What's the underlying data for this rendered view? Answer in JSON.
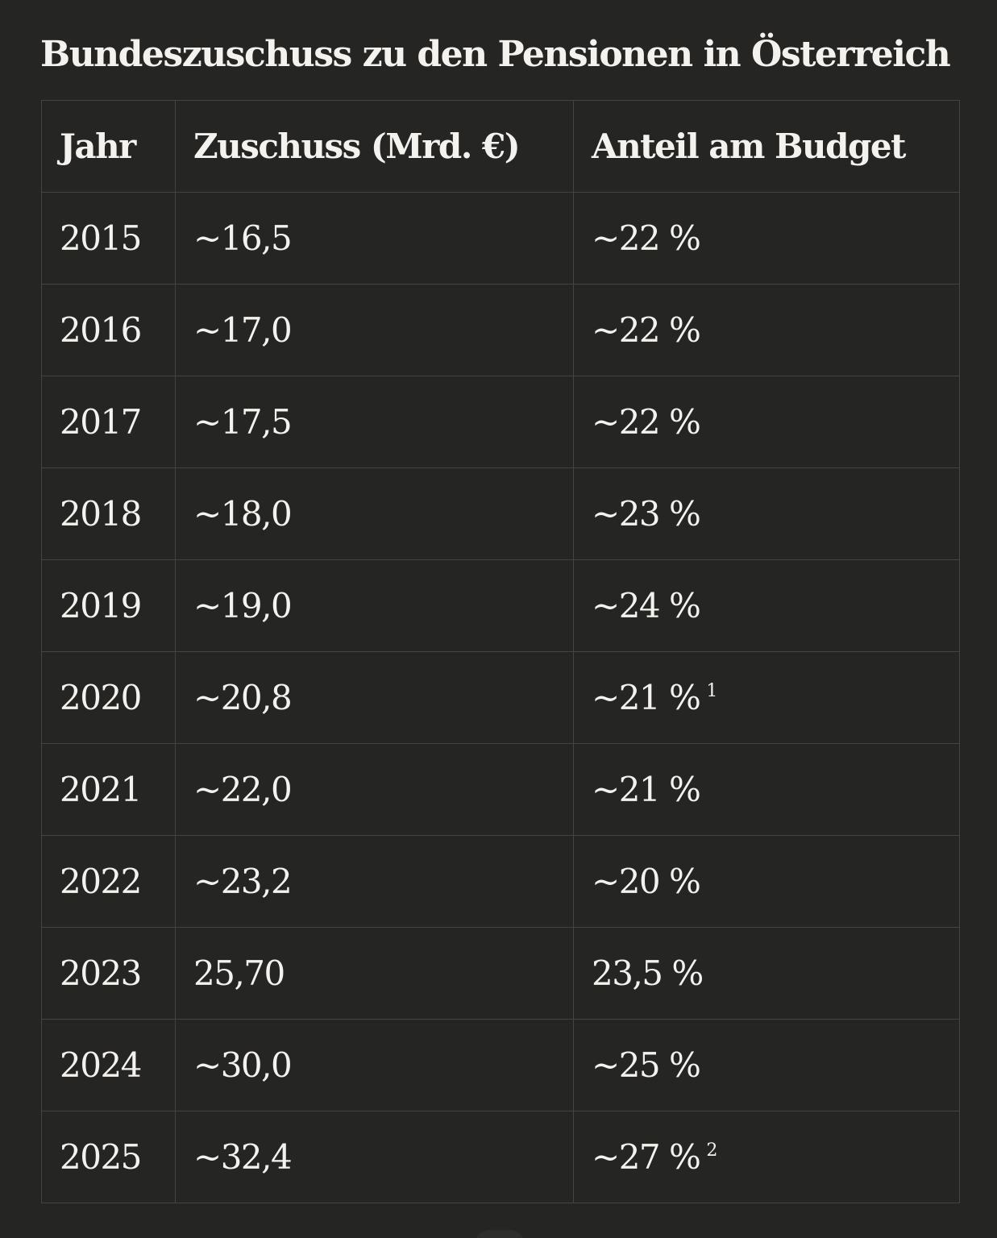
{
  "title": "Bundeszuschuss zu den Pensionen in Österreich",
  "table": {
    "headers": [
      "Jahr",
      "Zuschuss (Mrd. €)",
      "Anteil am Budget"
    ],
    "rows": [
      {
        "year": "2015",
        "amount": "~16,5",
        "share": "~22 %",
        "note": ""
      },
      {
        "year": "2016",
        "amount": "~17,0",
        "share": "~22 %",
        "note": ""
      },
      {
        "year": "2017",
        "amount": "~17,5",
        "share": "~22 %",
        "note": ""
      },
      {
        "year": "2018",
        "amount": "~18,0",
        "share": "~23 %",
        "note": ""
      },
      {
        "year": "2019",
        "amount": "~19,0",
        "share": "~24 %",
        "note": ""
      },
      {
        "year": "2020",
        "amount": "~20,8",
        "share": "~21 %",
        "note": "1"
      },
      {
        "year": "2021",
        "amount": "~22,0",
        "share": "~21 %",
        "note": ""
      },
      {
        "year": "2022",
        "amount": "~23,2",
        "share": "~20 %",
        "note": ""
      },
      {
        "year": "2023",
        "amount": "25,70",
        "share": "23,5 %",
        "note": ""
      },
      {
        "year": "2024",
        "amount": "~30,0",
        "share": "~25 %",
        "note": ""
      },
      {
        "year": "2025",
        "amount": "~32,4",
        "share": "~27 %",
        "note": "2"
      }
    ]
  }
}
